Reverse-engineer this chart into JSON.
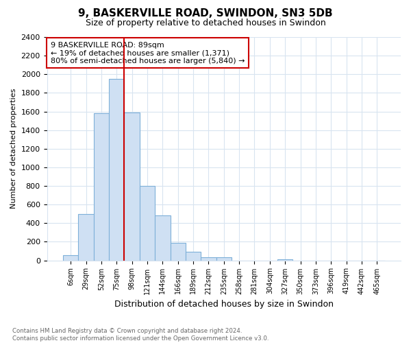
{
  "title": "9, BASKERVILLE ROAD, SWINDON, SN3 5DB",
  "subtitle": "Size of property relative to detached houses in Swindon",
  "xlabel": "Distribution of detached houses by size in Swindon",
  "ylabel": "Number of detached properties",
  "bar_labels": [
    "6sqm",
    "29sqm",
    "52sqm",
    "75sqm",
    "98sqm",
    "121sqm",
    "144sqm",
    "166sqm",
    "189sqm",
    "212sqm",
    "235sqm",
    "258sqm",
    "281sqm",
    "304sqm",
    "327sqm",
    "350sqm",
    "373sqm",
    "396sqm",
    "419sqm",
    "442sqm",
    "465sqm"
  ],
  "bar_values": [
    55,
    500,
    1580,
    1950,
    1590,
    800,
    480,
    190,
    90,
    35,
    30,
    0,
    0,
    0,
    15,
    0,
    0,
    0,
    0,
    0,
    0
  ],
  "bar_color": "#cfe0f3",
  "bar_edge_color": "#7eb0d9",
  "vline_color": "#cc0000",
  "ylim": [
    0,
    2400
  ],
  "yticks": [
    0,
    200,
    400,
    600,
    800,
    1000,
    1200,
    1400,
    1600,
    1800,
    2000,
    2200,
    2400
  ],
  "annotation_text": "9 BASKERVILLE ROAD: 89sqm\n← 19% of detached houses are smaller (1,371)\n80% of semi-detached houses are larger (5,840) →",
  "annotation_box_color": "#ffffff",
  "annotation_box_edge": "#cc0000",
  "footer_line1": "Contains HM Land Registry data © Crown copyright and database right 2024.",
  "footer_line2": "Contains public sector information licensed under the Open Government Licence v3.0.",
  "bg_color": "#ffffff",
  "grid_color": "#d8e4f0"
}
